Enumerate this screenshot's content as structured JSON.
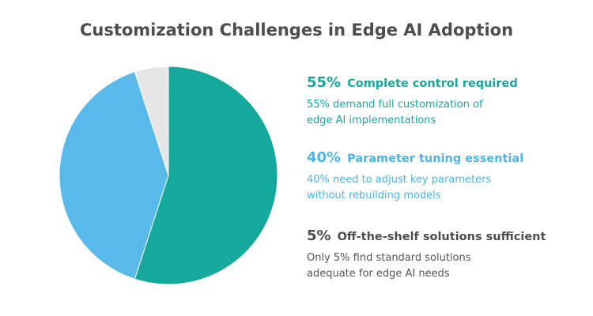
{
  "chart_data": {
    "type": "pie",
    "title": "Customization Challenges in Edge AI Adoption",
    "slices": [
      {
        "value": 55,
        "pct_label": "55%",
        "label": "Complete control required",
        "description": "55% demand full customization of\nedge AI implementations",
        "color": "#15a89d"
      },
      {
        "value": 40,
        "pct_label": "40%",
        "label": "Parameter tuning essential",
        "description": "40% need to adjust key parameters\nwithout rebuilding models",
        "color": "#59b9ea"
      },
      {
        "value": 5,
        "pct_label": "5%",
        "label": "Off-the-shelf solutions sufficient",
        "description": "Only 5% find standard solutions\nadequate for edge AI needs",
        "color": "#e6e6e6"
      }
    ],
    "start_angle_deg": 0,
    "direction": "clockwise"
  },
  "legend_colors": [
    "#15a89d",
    "#4db4e6",
    "#4d4d4d"
  ]
}
